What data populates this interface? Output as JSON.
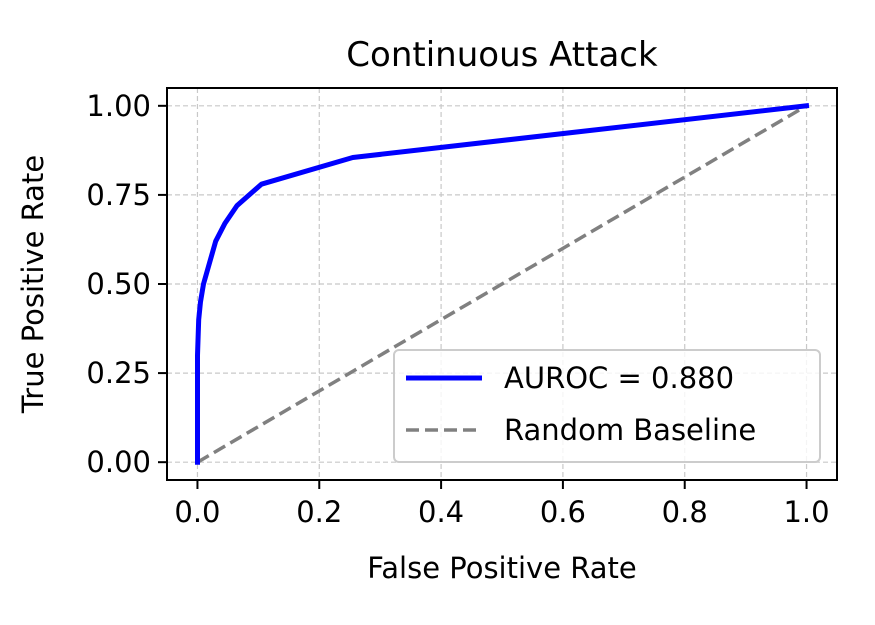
{
  "chart_data": {
    "type": "line",
    "title": "Continuous Attack",
    "xlabel": "False Positive Rate",
    "ylabel": "True Positive Rate",
    "xlim": [
      -0.05,
      1.05
    ],
    "ylim": [
      -0.05,
      1.05
    ],
    "xticks": [
      0.0,
      0.2,
      0.4,
      0.6,
      0.8,
      1.0
    ],
    "xtick_labels": [
      "0.0",
      "0.2",
      "0.4",
      "0.6",
      "0.8",
      "1.0"
    ],
    "yticks": [
      0.0,
      0.25,
      0.5,
      0.75,
      1.0
    ],
    "ytick_labels": [
      "0.00",
      "0.25",
      "0.50",
      "0.75",
      "1.00"
    ],
    "grid": true,
    "legend_position": "lower-right",
    "series": [
      {
        "name": "AUROC = 0.880",
        "color": "#0000ff",
        "style": "solid",
        "x": [
          0.0,
          0.0,
          0.002,
          0.005,
          0.01,
          0.02,
          0.03,
          0.045,
          0.065,
          0.105,
          0.255,
          1.0
        ],
        "y": [
          0.0,
          0.3,
          0.4,
          0.45,
          0.5,
          0.56,
          0.62,
          0.67,
          0.72,
          0.78,
          0.855,
          1.0
        ]
      },
      {
        "name": "Random Baseline",
        "color": "#808080",
        "style": "dashed",
        "x": [
          0.0,
          1.0
        ],
        "y": [
          0.0,
          1.0
        ]
      }
    ]
  }
}
